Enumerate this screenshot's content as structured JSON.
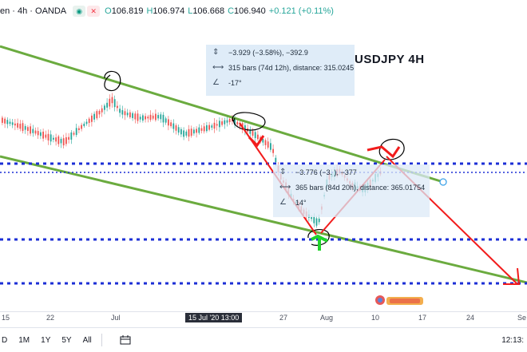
{
  "header": {
    "symbol": "en · 4h · OANDA",
    "open_label": "O",
    "open": "106.819",
    "high_label": "H",
    "high": "106.974",
    "low_label": "L",
    "low": "106.668",
    "close_label": "C",
    "close": "106.940",
    "change": "+0.121 (+0.11%)"
  },
  "chart_title": "USDJPY  4H",
  "measure_top": {
    "change": "−3.929 (−3.58%), −392.9",
    "bars": "315 bars (74d 12h), distance: 315.0245",
    "angle": "-17°"
  },
  "measure_bottom": {
    "change": "−3.776 (−3.    ), −377",
    "bars": "365 bars (84d 20h), distance: 365.01754",
    "angle": "14°"
  },
  "xaxis": {
    "labels": [
      "15",
      "22",
      "Jul",
      "15 Jul '20   13:00",
      "27",
      "Aug",
      "10",
      "17",
      "24",
      "Se"
    ]
  },
  "footer": {
    "ranges": [
      "D",
      "1M",
      "1Y",
      "5Y",
      "All"
    ],
    "time": "12:13:"
  },
  "colors": {
    "up": "#26a69a",
    "down": "#ef5350",
    "trendline": "#6bab3f",
    "level": "#1c2fd6",
    "arrow": "#f21c1c"
  }
}
